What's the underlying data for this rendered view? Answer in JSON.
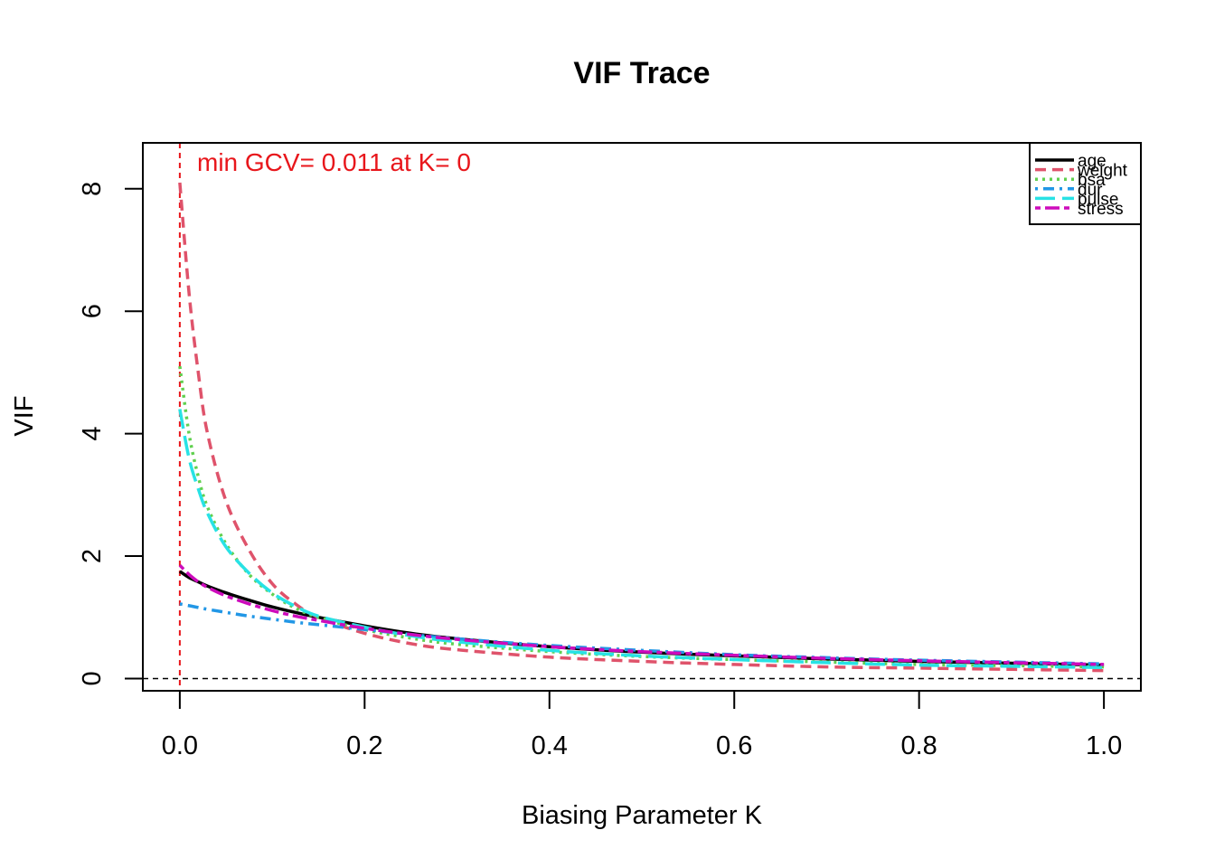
{
  "chart_data": {
    "type": "line",
    "title": "VIF Trace",
    "xlabel": "Biasing Parameter K",
    "ylabel": "VIF",
    "xlim": [
      -0.04,
      1.04
    ],
    "ylim": [
      -0.2,
      8.75
    ],
    "x_ticks": [
      "0.0",
      "0.2",
      "0.4",
      "0.6",
      "0.8",
      "1.0"
    ],
    "y_ticks": [
      "0",
      "2",
      "4",
      "6",
      "8"
    ],
    "x_tick_values": [
      0,
      0.2,
      0.4,
      0.6,
      0.8,
      1.0
    ],
    "y_tick_values": [
      0,
      2,
      4,
      6,
      8
    ],
    "legend_position": "top-right",
    "annotation": {
      "text": "min GCV= 0.011 at K= 0",
      "color": "#e8161b",
      "vline_x": 0
    },
    "hline_y": 0,
    "x": [
      0,
      0.01,
      0.02,
      0.03,
      0.05,
      0.075,
      0.1,
      0.125,
      0.15,
      0.2,
      0.25,
      0.3,
      0.4,
      0.5,
      0.6,
      0.7,
      0.8,
      0.9,
      1.0
    ],
    "series": [
      {
        "name": "age",
        "color": "#000000",
        "dash": "solid",
        "values": [
          1.75,
          1.65,
          1.58,
          1.51,
          1.4,
          1.28,
          1.17,
          1.08,
          1.0,
          0.86,
          0.74,
          0.65,
          0.52,
          0.43,
          0.37,
          0.32,
          0.28,
          0.25,
          0.22
        ]
      },
      {
        "name": "weight",
        "color": "#df536b",
        "dash": "dashed",
        "values": [
          8.1,
          6.3,
          5.0,
          4.0,
          2.9,
          2.1,
          1.55,
          1.22,
          1.0,
          0.74,
          0.57,
          0.47,
          0.35,
          0.28,
          0.23,
          0.19,
          0.17,
          0.15,
          0.13
        ]
      },
      {
        "name": "bsa",
        "color": "#61d04f",
        "dash": "dotted",
        "values": [
          5.1,
          4.0,
          3.3,
          2.8,
          2.2,
          1.7,
          1.38,
          1.15,
          1.0,
          0.8,
          0.66,
          0.56,
          0.44,
          0.36,
          0.31,
          0.27,
          0.23,
          0.21,
          0.19
        ]
      },
      {
        "name": "dur",
        "color": "#2297e6",
        "dash": "dotdash",
        "values": [
          1.22,
          1.19,
          1.16,
          1.13,
          1.08,
          1.02,
          0.97,
          0.92,
          0.88,
          0.8,
          0.72,
          0.65,
          0.54,
          0.46,
          0.39,
          0.34,
          0.3,
          0.27,
          0.24
        ]
      },
      {
        "name": "pulse",
        "color": "#28e2e5",
        "dash": "longdash",
        "values": [
          4.4,
          3.6,
          3.1,
          2.7,
          2.15,
          1.72,
          1.4,
          1.18,
          1.02,
          0.84,
          0.7,
          0.6,
          0.46,
          0.37,
          0.31,
          0.26,
          0.22,
          0.2,
          0.18
        ]
      },
      {
        "name": "stress",
        "color": "#cd0bbc",
        "dash": "twodash",
        "values": [
          1.85,
          1.7,
          1.58,
          1.49,
          1.35,
          1.22,
          1.11,
          1.02,
          0.95,
          0.82,
          0.72,
          0.64,
          0.52,
          0.44,
          0.38,
          0.33,
          0.29,
          0.26,
          0.23
        ]
      }
    ]
  }
}
